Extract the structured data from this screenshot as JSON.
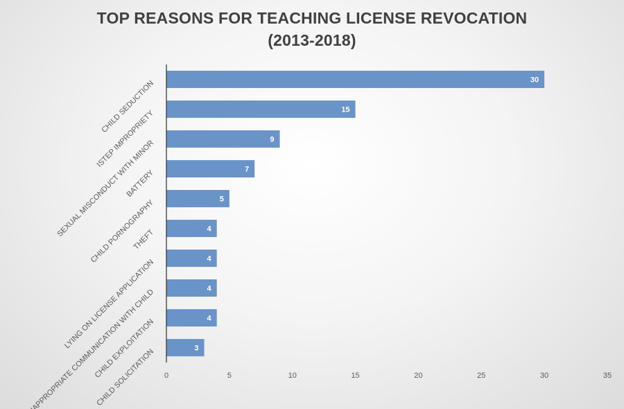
{
  "chart_data": {
    "type": "bar",
    "orientation": "horizontal",
    "title_line1": "TOP REASONS FOR TEACHING LICENSE REVOCATION",
    "title_line2": "(2013-2018)",
    "categories": [
      "CHILD SEDUCTION",
      "ISTEP  IMPROPRIETY",
      "SEXUAL MISCONDUCT WITH MINOR",
      "BATTERY",
      "CHILD PORNOGRAPHY",
      "THEFT",
      "LYING ON LICENSE APPLICATION",
      "INAPPROPRIATE COMMUNICATION WITH CHILD",
      "CHILD EXPLOITATION",
      "CHILD SOLICITATION"
    ],
    "values": [
      30,
      15,
      9,
      7,
      5,
      4,
      4,
      4,
      4,
      3
    ],
    "xlim": [
      0,
      35
    ],
    "xticks": [
      0,
      5,
      10,
      15,
      20,
      25,
      30,
      35
    ],
    "grid": false,
    "legend": "none",
    "bar_color": "#6a93c8",
    "data_label_color": "#ffffff"
  }
}
